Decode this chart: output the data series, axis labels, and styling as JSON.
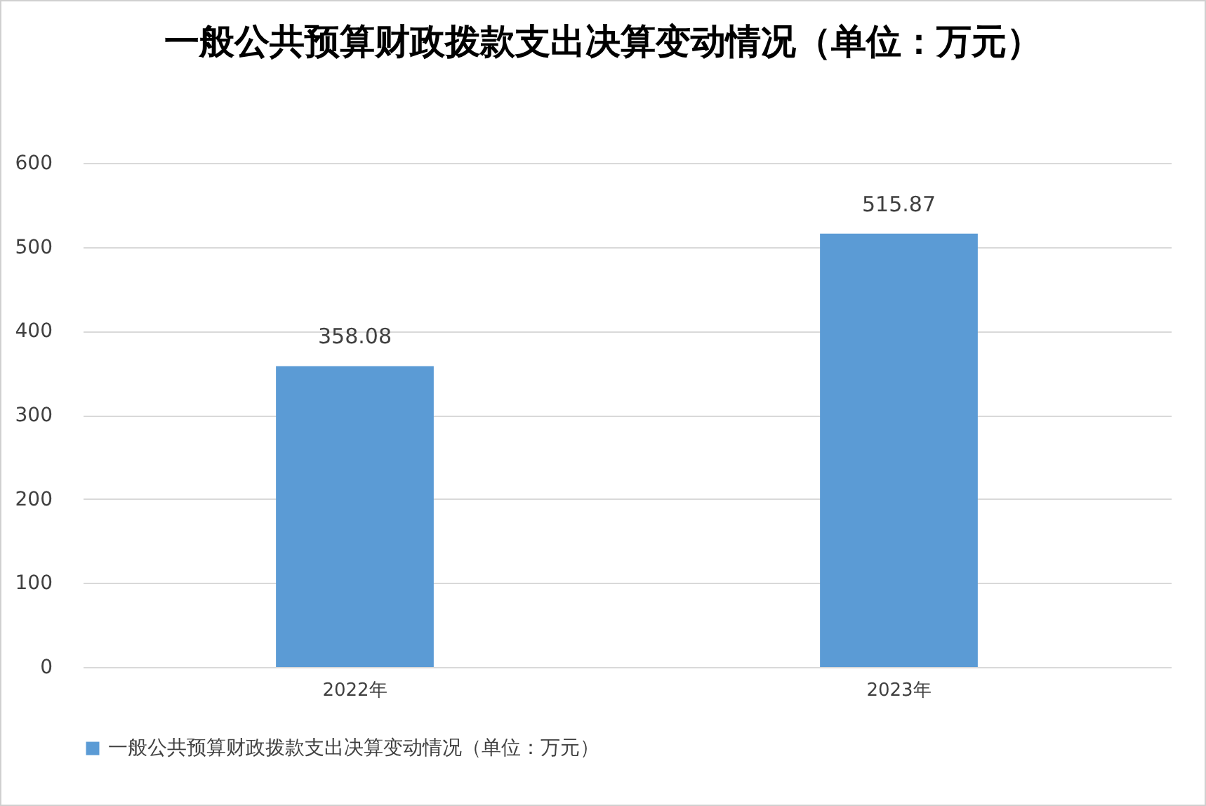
{
  "chart_data": {
    "type": "bar",
    "title": "一般公共预算财政拨款支出决算变动情况（单位：万元）",
    "categories": [
      "2022年",
      "2023年"
    ],
    "series": [
      {
        "name": "一般公共预算财政拨款支出决算变动情况（单位：万元）",
        "color": "#5b9bd5",
        "values": [
          358.08,
          515.87
        ]
      }
    ],
    "ylim": [
      0,
      600
    ],
    "yticks": [
      0,
      100,
      200,
      300,
      400,
      500,
      600
    ],
    "grid": "y",
    "legend": "bottom",
    "data_labels": true
  }
}
